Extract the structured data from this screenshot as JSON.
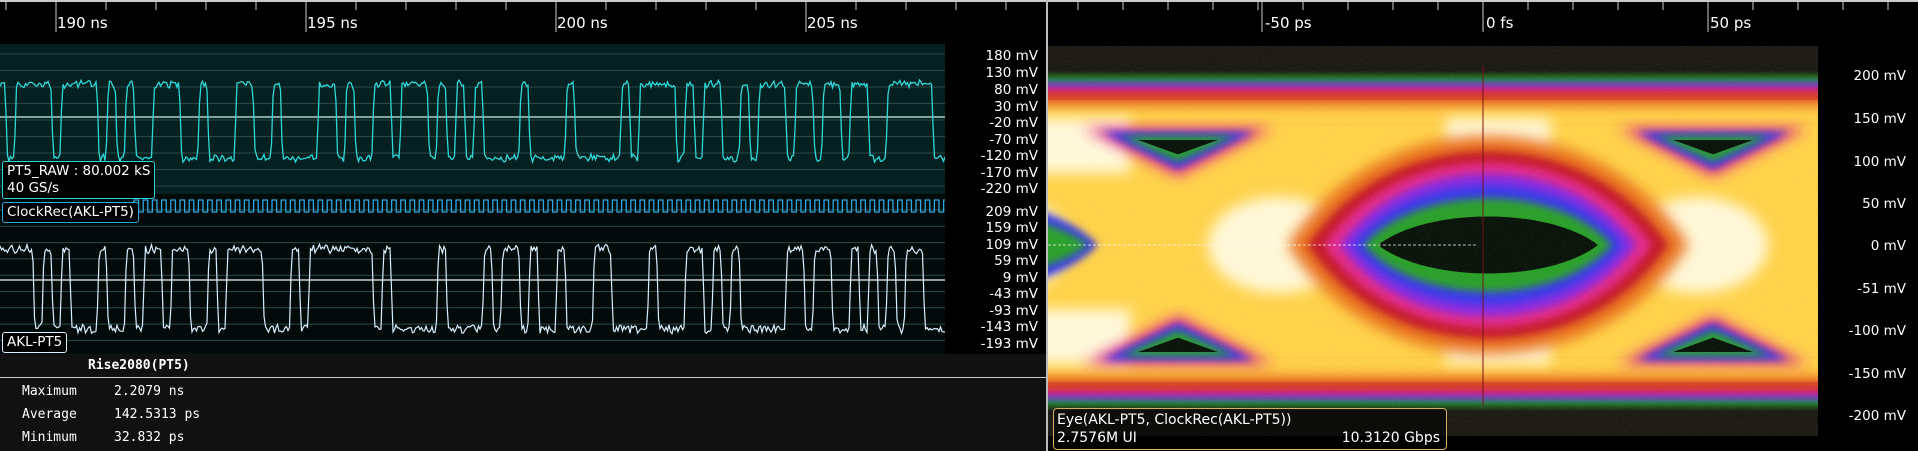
{
  "waveform_pane": {
    "time_ticks": [
      "190 ns",
      "195 ns",
      "200 ns",
      "205 ns"
    ],
    "channels": [
      {
        "label": "PT5_RAW : 80.002 kS",
        "sublabel": "40 GS/s",
        "color": "#2fd8d8",
        "y_ticks": [
          "180 mV",
          "130 mV",
          "80 mV",
          "30 mV",
          "-20 mV",
          "-70 mV",
          "-120 mV",
          "-170 mV",
          "-220 mV"
        ]
      },
      {
        "label": "ClockRec(AKL-PT5)",
        "color": "#2fa8e0"
      },
      {
        "label": "AKL-PT5",
        "color": "#d8f0ff",
        "y_ticks": [
          "209 mV",
          "159 mV",
          "109 mV",
          "59 mV",
          "9 mV",
          "-43 mV",
          "-93 mV",
          "-143 mV",
          "-193 mV"
        ]
      }
    ]
  },
  "measurement": {
    "title": "Rise2080(PT5)",
    "rows": [
      {
        "name": "Maximum",
        "value": "2.2079 ns"
      },
      {
        "name": "Average",
        "value": "142.5313 ps"
      },
      {
        "name": "Minimum",
        "value": "32.832 ps"
      }
    ]
  },
  "eye_pane": {
    "time_ticks": [
      "-50 ps",
      "0 fs",
      "50 ps"
    ],
    "y_ticks": [
      "200 mV",
      "150 mV",
      "100 mV",
      "50 mV",
      "0 mV",
      "-51 mV",
      "-100 mV",
      "-150 mV",
      "-200 mV"
    ],
    "info": {
      "title": "Eye(AKL-PT5, ClockRec(AKL-PT5))",
      "ui_count": "2.7576M UI",
      "bitrate": "10.3120 Gbps"
    },
    "colors": {
      "hot": "#fff8d8",
      "warm": "#ffd24a",
      "orange": "#e8701e",
      "red": "#c41a2a",
      "magenta": "#e02a8a",
      "violet": "#8a2ae0",
      "blue": "#3a3ae8",
      "green": "#2aa02a"
    }
  }
}
